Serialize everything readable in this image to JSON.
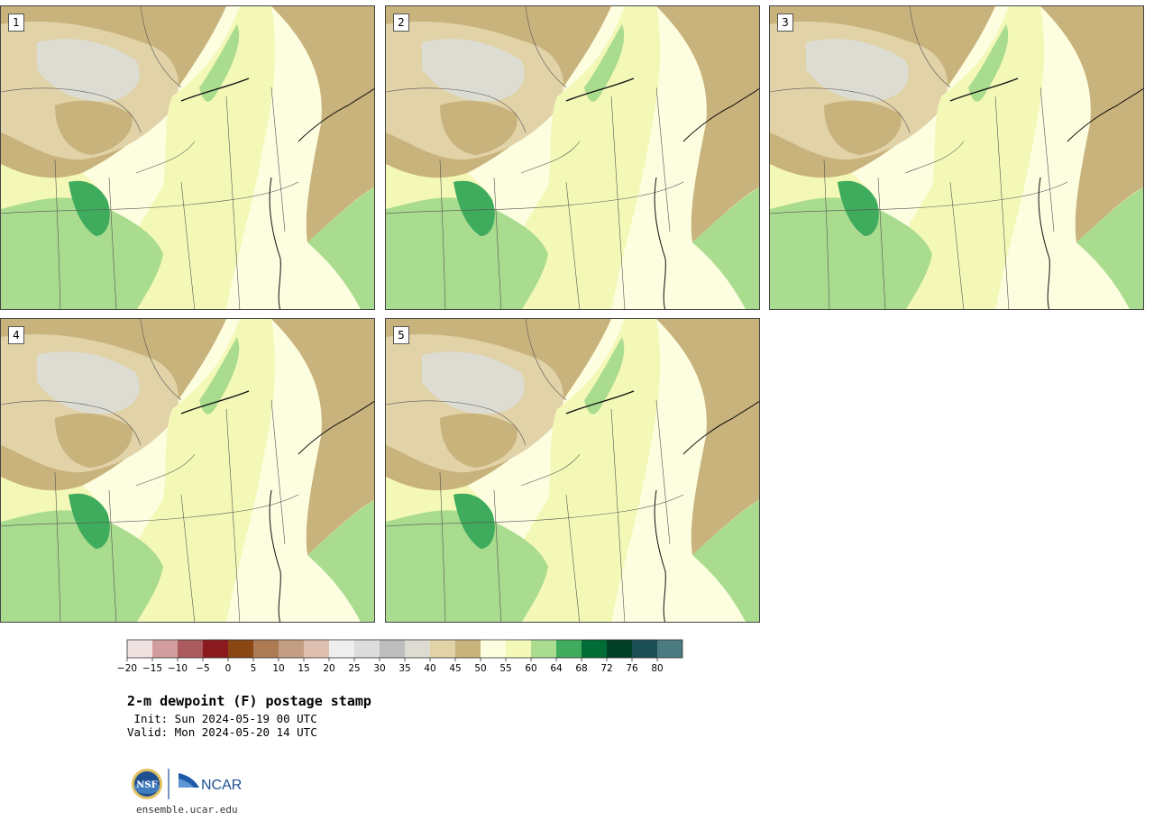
{
  "colors": {
    "tan_dark": "#c9b37c",
    "tan_light": "#e1d2a8",
    "gray": "#dcdcd2",
    "cream": "#fdfde0",
    "yellow": "#f4f8b6",
    "green_light": "#a9dc8f",
    "green_mid": "#3fab5c"
  },
  "panels": [
    {
      "label": "1"
    },
    {
      "label": "2"
    },
    {
      "label": "3"
    },
    {
      "label": "4"
    },
    {
      "label": "5"
    }
  ],
  "colorbar": {
    "colors": [
      "#f1e2e2",
      "#d29d9f",
      "#ab5a5d",
      "#8b1a1f",
      "#8a4613",
      "#ac7a53",
      "#c49e83",
      "#dfc0b0",
      "#eeeeee",
      "#dcdcdc",
      "#bdbdbd",
      "#dcdcd2",
      "#e1d2a8",
      "#c9b37c",
      "#fdfde0",
      "#f4f8b6",
      "#a9dc8f",
      "#3fab5c",
      "#006c36",
      "#003f25",
      "#1b4e55",
      "#4b7a80"
    ],
    "ticks": [
      "−20",
      "−15",
      "−10",
      "−5",
      "0",
      "5",
      "10",
      "15",
      "20",
      "25",
      "30",
      "35",
      "40",
      "45",
      "50",
      "55",
      "60",
      "64",
      "68",
      "72",
      "76",
      "80"
    ]
  },
  "title": "2-m dewpoint (F) postage stamp",
  "init_line": " Init: Sun 2024-05-19 00 UTC",
  "valid_line": "Valid: Mon 2024-05-20 14 UTC",
  "logo": {
    "nsf": "NSF",
    "ncar": "NCAR"
  },
  "site": "ensemble.ucar.edu"
}
